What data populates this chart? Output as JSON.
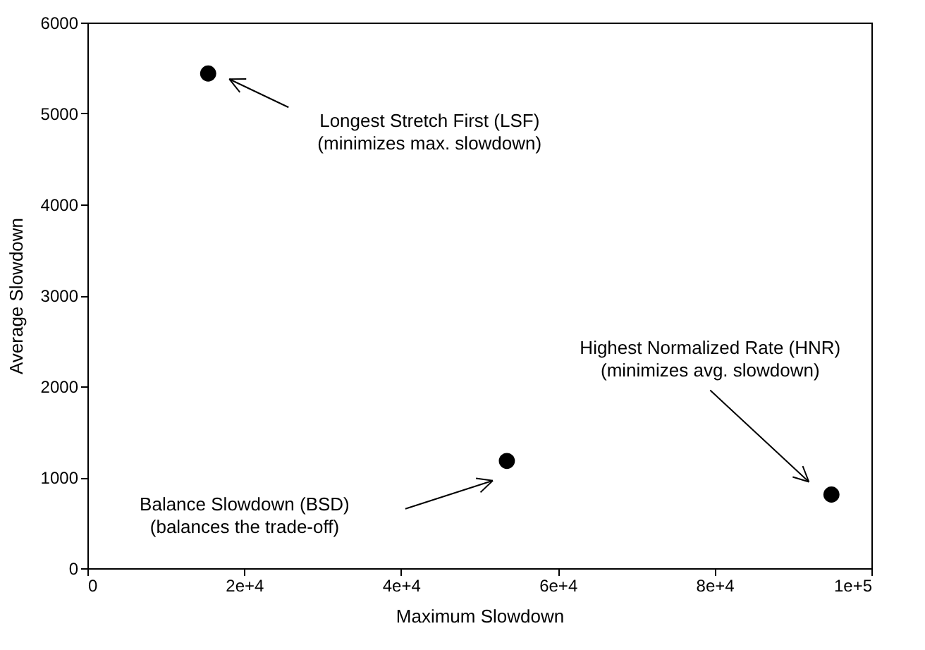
{
  "chart_data": {
    "type": "scatter",
    "xlabel": "Maximum Slowdown",
    "ylabel": "Average Slowdown",
    "x": [
      15400,
      53500,
      94900
    ],
    "values": [
      5440,
      1180,
      810
    ],
    "color": "#000000",
    "marker": "circle",
    "xlim": [
      0,
      100000
    ],
    "xticks": [
      0,
      {
        "value": 20000,
        "label": "2e+4"
      },
      {
        "value": 40000,
        "label": "4e+4"
      },
      {
        "value": 60000,
        "label": "6e+4"
      },
      {
        "value": 80000,
        "label": "8e+4"
      },
      {
        "value": 100000,
        "label": "1e+5"
      }
    ],
    "ylim": [
      0,
      6000
    ],
    "yticks": [
      0,
      1000,
      2000,
      3000,
      4000,
      5000,
      6000
    ],
    "grid": false,
    "annotations": [
      "Longest Stretch First (LSF)\n(minimizes max. slowdown)",
      "Balance Slowdown (BSD)\n(balances the trade-off)",
      "Highest Normalized Rate (HNR)\n(minimizes avg. slowdown)"
    ]
  }
}
